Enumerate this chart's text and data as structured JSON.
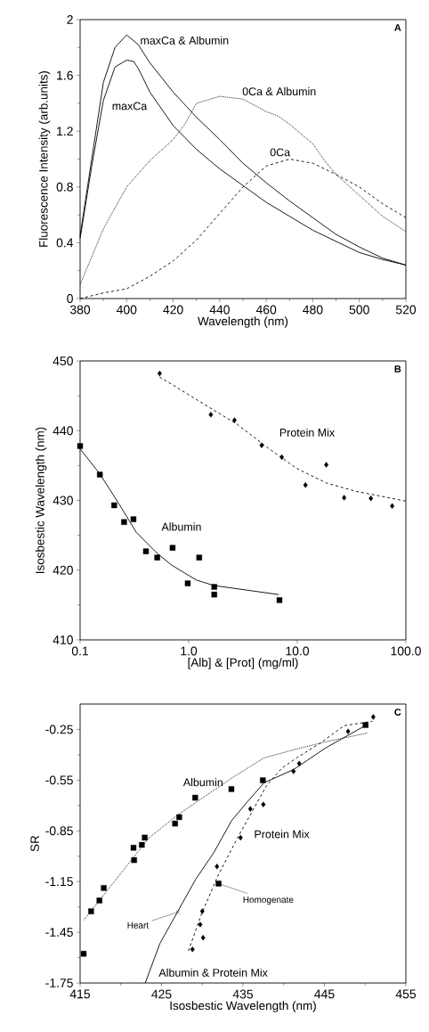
{
  "chart_data": [
    {
      "type": "line",
      "xlabel": "Wavelength (nm)",
      "ylabel": "Fluorescence Intensity (arb.units)",
      "annotations": [
        "A"
      ],
      "xlim": [
        380,
        520
      ],
      "ylim": [
        0,
        2
      ],
      "xticks": [
        380,
        400,
        420,
        440,
        460,
        480,
        500,
        520
      ],
      "yticks": [
        0,
        0.4,
        0.8,
        1.2,
        1.6,
        2
      ],
      "series": [
        {
          "name": "maxCa & Albumin",
          "color": "#000000",
          "line_style": "solid",
          "x": [
            380,
            385,
            390,
            395,
            400,
            405,
            410,
            420,
            430,
            440,
            450,
            460,
            470,
            480,
            490,
            500,
            510,
            520
          ],
          "values": [
            0.45,
            1.0,
            1.55,
            1.8,
            1.89,
            1.82,
            1.69,
            1.48,
            1.3,
            1.14,
            0.97,
            0.83,
            0.7,
            0.58,
            0.46,
            0.37,
            0.29,
            0.24
          ]
        },
        {
          "name": "maxCa",
          "color": "#000000",
          "line_style": "solid",
          "x": [
            380,
            385,
            390,
            395,
            400,
            403,
            405,
            410,
            420,
            430,
            440,
            450,
            460,
            470,
            480,
            490,
            500,
            510,
            520
          ],
          "values": [
            0.43,
            0.95,
            1.42,
            1.66,
            1.71,
            1.7,
            1.65,
            1.48,
            1.24,
            1.07,
            0.93,
            0.81,
            0.69,
            0.59,
            0.49,
            0.41,
            0.33,
            0.28,
            0.24
          ]
        },
        {
          "name": "0Ca & Albumin",
          "color": "#000000",
          "line_style": "dotted",
          "x": [
            380,
            390,
            400,
            410,
            420,
            425,
            430,
            440,
            450,
            460,
            465,
            470,
            480,
            485,
            490,
            500,
            510,
            520
          ],
          "values": [
            0.1,
            0.5,
            0.8,
            0.99,
            1.14,
            1.25,
            1.4,
            1.45,
            1.43,
            1.34,
            1.31,
            1.25,
            1.11,
            0.99,
            0.89,
            0.74,
            0.59,
            0.48
          ]
        },
        {
          "name": "0Ca",
          "color": "#000000",
          "line_style": "dashed",
          "x": [
            380,
            390,
            400,
            410,
            420,
            430,
            440,
            450,
            460,
            470,
            480,
            490,
            500,
            510,
            520
          ],
          "values": [
            0.0,
            0.04,
            0.07,
            0.16,
            0.27,
            0.42,
            0.61,
            0.8,
            0.95,
            1.0,
            0.97,
            0.89,
            0.8,
            0.68,
            0.58
          ]
        }
      ]
    },
    {
      "type": "scatter",
      "xlabel": "[Alb] & [Prot] (mg/ml)",
      "ylabel": "Isosbestic Wavelength (nm)",
      "annotations": [
        "B"
      ],
      "log": "x",
      "xlim": [
        0.1,
        100
      ],
      "ylim": [
        410,
        450
      ],
      "xticks": [
        0.1,
        {
          "value": 1,
          "label": "1.0"
        },
        {
          "value": 10,
          "label": "10.0"
        },
        {
          "value": 100,
          "label": "100.0"
        }
      ],
      "yticks": [
        410,
        420,
        430,
        440,
        450
      ],
      "series": [
        {
          "name": "Albumin",
          "type": "scatter",
          "marker": "square",
          "color": "#000000",
          "x": [
            0.1,
            0.152,
            0.206,
            0.254,
            0.31,
            0.404,
            0.513,
            0.711,
            0.98,
            1.25,
            1.72,
            1.72,
            6.86
          ],
          "values": [
            437.8,
            433.7,
            429.3,
            426.9,
            427.3,
            422.7,
            421.8,
            423.2,
            418.1,
            421.8,
            417.6,
            416.5,
            415.7
          ]
        },
        {
          "type": "line",
          "line_style": "solid",
          "color": "#000000",
          "x": [
            0.1,
            0.152,
            0.226,
            0.33,
            0.513,
            0.7,
            1.17,
            1.7,
            6.74
          ],
          "values": [
            437.4,
            433.8,
            429.6,
            425.4,
            422.4,
            420.7,
            418.6,
            417.8,
            416.5
          ]
        },
        {
          "name": "Protein Mix",
          "type": "scatter",
          "marker": "diamond",
          "color": "#000000",
          "x": [
            0.54,
            1.6,
            2.64,
            4.7,
            7.21,
            11.9,
            18.5,
            27.0,
            47.6,
            74.8
          ],
          "values": [
            448.2,
            442.3,
            441.5,
            437.9,
            436.2,
            432.2,
            435.1,
            430.4,
            430.3,
            429.2
          ]
        },
        {
          "type": "line",
          "line_style": "dashed",
          "color": "#000000",
          "x": [
            0.54,
            1.49,
            2.8,
            5.3,
            9.85,
            18.5,
            34.8,
            100
          ],
          "values": [
            447.7,
            443.5,
            440.9,
            437.6,
            434.6,
            432.5,
            431.3,
            429.9
          ]
        }
      ]
    },
    {
      "type": "scatter",
      "xlabel": "Isosbestic Wavelength (nm)",
      "ylabel": "SR",
      "annotations": [
        "C"
      ],
      "xlim": [
        415,
        455
      ],
      "ylim": [
        -1.75,
        -0.1
      ],
      "xticks": [
        415,
        425,
        435,
        445,
        455
      ],
      "yticks": [
        -1.75,
        -1.45,
        -1.15,
        -0.85,
        -0.55,
        -0.25
      ],
      "series": [
        {
          "name": "Albumin",
          "type": "scatter",
          "marker": "square",
          "color": "#000000",
          "x": [
            415.44,
            416.35,
            417.37,
            417.91,
            421.63,
            421.56,
            422.58,
            422.94,
            426.66,
            427.17,
            429.13,
            433.58,
            437.44,
            450.05
          ],
          "values": [
            -1.577,
            -1.326,
            -1.262,
            -1.188,
            -1.023,
            -0.95,
            -0.933,
            -0.89,
            -0.807,
            -0.769,
            -0.654,
            -0.603,
            -0.551,
            -0.224
          ]
        },
        {
          "type": "line",
          "line_style": "dotted",
          "color": "#000000",
          "x": [
            415.44,
            419.7,
            423.4,
            427.0,
            430.7,
            433.6,
            437.6,
            441.6,
            445.2,
            450.3
          ],
          "values": [
            -1.378,
            -1.12,
            -0.894,
            -0.755,
            -0.634,
            -0.539,
            -0.418,
            -0.366,
            -0.323,
            -0.271
          ]
        },
        {
          "name": "Protein Mix",
          "type": "scatter",
          "marker": "diamond",
          "color": "#000000",
          "x": [
            451.0,
            447.9,
            441.9,
            441.2,
            437.5,
            435.9,
            434.7,
            431.8,
            430.0,
            429.75,
            430.1,
            428.8
          ],
          "values": [
            -0.176,
            -0.262,
            -0.452,
            -0.498,
            -0.694,
            -0.72,
            -0.89,
            -1.061,
            -1.326,
            -1.404,
            -1.482,
            -1.551
          ]
        },
        {
          "type": "line",
          "line_style": "dashed",
          "color": "#000000",
          "x": [
            428.3,
            429.9,
            431.9,
            434.3,
            436.1,
            437.9,
            439.8,
            441.6,
            444.5,
            447.4,
            450.9
          ],
          "values": [
            -1.56,
            -1.343,
            -1.118,
            -0.894,
            -0.738,
            -0.582,
            -0.478,
            -0.418,
            -0.331,
            -0.228,
            -0.202
          ]
        },
        {
          "name": "Albumin  & Protein Mix",
          "type": "line",
          "line_style": "solid",
          "color": "#000000",
          "x": [
            423.0,
            424.8,
            427.0,
            429.2,
            431.4,
            433.6,
            435.4,
            437.6,
            441.2,
            445.2,
            450.0
          ],
          "values": [
            -1.75,
            -1.516,
            -1.326,
            -1.136,
            -0.98,
            -0.79,
            -0.686,
            -0.565,
            -0.488,
            -0.358,
            -0.228
          ]
        },
        {
          "name": "Heart",
          "type": "scatter",
          "marker": "cross",
          "color": "#000000",
          "x": [
            427.0
          ],
          "values": [
            -1.331
          ]
        },
        {
          "name": "Homogenate",
          "type": "scatter",
          "marker": "square",
          "color": "#000000",
          "x": [
            432.0
          ],
          "values": [
            -1.162
          ]
        }
      ]
    }
  ]
}
